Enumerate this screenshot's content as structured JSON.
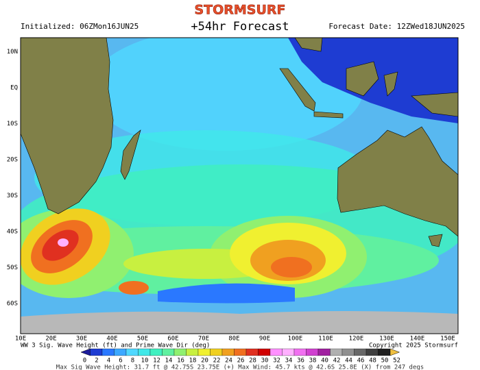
{
  "header": {
    "logo": "STORMSURF",
    "initialized": "Initialized: 06ZMon16JUN25",
    "title": "+54hr Forecast",
    "forecast_date": "Forecast Date: 12ZWed18JUN2025"
  },
  "map": {
    "lat_labels": [
      "10N",
      "EQ",
      "10S",
      "20S",
      "30S",
      "40S",
      "50S",
      "60S"
    ],
    "lon_labels": [
      "10E",
      "20E",
      "30E",
      "40E",
      "50E",
      "60E",
      "70E",
      "80E",
      "90E",
      "100E",
      "110E",
      "120E",
      "130E",
      "140E",
      "150E"
    ]
  },
  "legend": {
    "caption": "WW 3 Sig. Wave Height (ft) and Prime Wave Dir (deg)",
    "copyright": "Copyright 2025 Stormsurf",
    "labels": [
      "0",
      "2",
      "4",
      "6",
      "8",
      "10",
      "12",
      "14",
      "16",
      "18",
      "20",
      "22",
      "24",
      "26",
      "28",
      "30",
      "32",
      "34",
      "36",
      "38",
      "40",
      "42",
      "44",
      "46",
      "48",
      "50",
      "52"
    ],
    "colors": [
      "#1c1c9c",
      "#1e3cd2",
      "#2a78ff",
      "#3ca8ff",
      "#50d8ff",
      "#40e8e8",
      "#40f0c0",
      "#60f0a0",
      "#90f070",
      "#c8f040",
      "#f0f030",
      "#f0d020",
      "#f0a020",
      "#f07020",
      "#e03020",
      "#d00000",
      "#ff90ff",
      "#ffb0ff",
      "#f070f0",
      "#d040d0",
      "#a020a0",
      "#b0b0b0",
      "#909090",
      "#686868",
      "#404040",
      "#202020",
      "#f0c040"
    ]
  },
  "footer": "Max Sig Wave Height: 31.7 ft @ 42.75S 23.75E (+)  Max Wind: 45.7 kts @ 42.6S 25.8E (X) from 247 degs"
}
